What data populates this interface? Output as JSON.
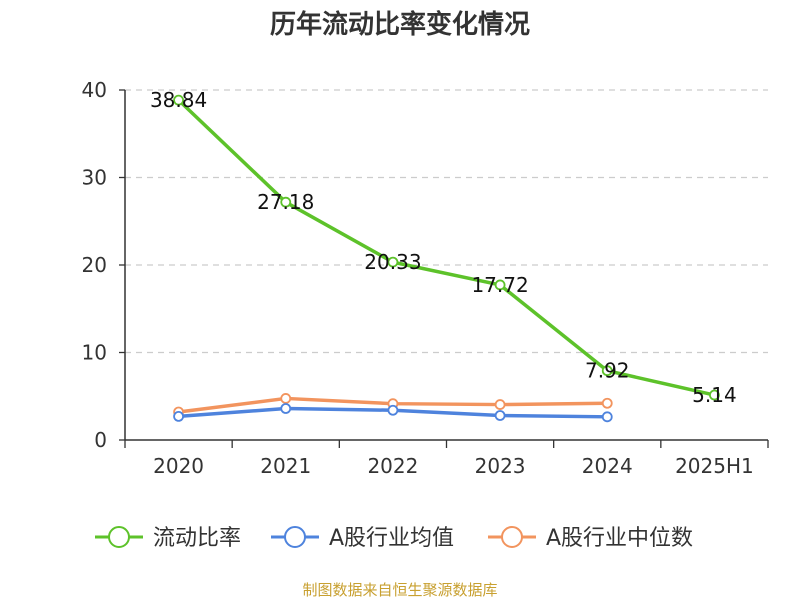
{
  "chart_data": {
    "type": "line",
    "title": "历年流动比率变化情况",
    "categories": [
      "2020",
      "2021",
      "2022",
      "2023",
      "2024",
      "2025H1"
    ],
    "ylim": [
      0,
      40
    ],
    "yticks": [
      0,
      10,
      20,
      30,
      40
    ],
    "grid": true,
    "legend_position": "bottom",
    "series": [
      {
        "name": "流动比率",
        "color": "#5dc22a",
        "values": [
          38.84,
          27.18,
          20.33,
          17.72,
          7.92,
          5.14
        ],
        "labels": [
          "38.84",
          "27.18",
          "20.33",
          "17.72",
          "7.92",
          "5.14"
        ]
      },
      {
        "name": "A股行业均值",
        "color": "#4e83dd",
        "values": [
          2.7,
          3.6,
          3.4,
          2.8,
          2.65,
          null
        ]
      },
      {
        "name": "A股行业中位数",
        "color": "#f2945e",
        "values": [
          3.2,
          4.75,
          4.15,
          4.05,
          4.2,
          null
        ]
      }
    ]
  },
  "footer": {
    "source": "制图数据来自恒生聚源数据库"
  }
}
